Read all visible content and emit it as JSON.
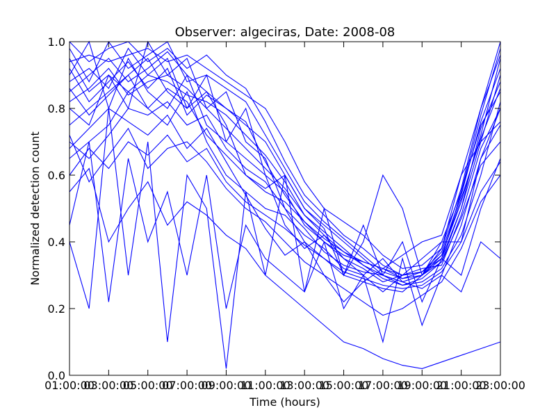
{
  "chart_data": {
    "type": "line",
    "title": "Observer: algeciras, Date: 2008-08",
    "xlabel": "Time (hours)",
    "ylabel": "Normalized detection count",
    "xlim": [
      1,
      23
    ],
    "ylim": [
      0,
      1
    ],
    "xticks": [
      {
        "value": 1,
        "label": "01:00:00"
      },
      {
        "value": 3,
        "label": "03:00:00"
      },
      {
        "value": 5,
        "label": "05:00:00"
      },
      {
        "value": 7,
        "label": "07:00:00"
      },
      {
        "value": 9,
        "label": "09:00:00"
      },
      {
        "value": 11,
        "label": "11:00:00"
      },
      {
        "value": 13,
        "label": "13:00:00"
      },
      {
        "value": 15,
        "label": "15:00:00"
      },
      {
        "value": 17,
        "label": "17:00:00"
      },
      {
        "value": 19,
        "label": "19:00:00"
      },
      {
        "value": 21,
        "label": "21:00:00"
      },
      {
        "value": 23,
        "label": "23:00:00"
      }
    ],
    "yticks": [
      {
        "value": 0.0,
        "label": "0.0"
      },
      {
        "value": 0.2,
        "label": "0.2"
      },
      {
        "value": 0.4,
        "label": "0.4"
      },
      {
        "value": 0.6,
        "label": "0.6"
      },
      {
        "value": 0.8,
        "label": "0.8"
      },
      {
        "value": 1.0,
        "label": "1.0"
      }
    ],
    "grid": false,
    "line_color": "#0000ff",
    "x": [
      1,
      2,
      3,
      4,
      5,
      6,
      7,
      8,
      9,
      10,
      11,
      12,
      13,
      14,
      15,
      16,
      17,
      18,
      19,
      20,
      21,
      22,
      23
    ],
    "series": [
      {
        "values": [
          0.85,
          0.9,
          0.95,
          0.88,
          0.92,
          0.97,
          0.9,
          0.85,
          0.8,
          0.75,
          0.7,
          0.6,
          0.5,
          0.45,
          0.4,
          0.35,
          0.3,
          0.28,
          0.3,
          0.35,
          0.5,
          0.7,
          0.9
        ]
      },
      {
        "values": [
          0.75,
          0.8,
          0.85,
          0.9,
          0.95,
          0.85,
          0.8,
          0.9,
          0.7,
          0.65,
          0.6,
          0.55,
          0.45,
          0.4,
          0.35,
          0.3,
          0.25,
          0.3,
          0.35,
          0.4,
          0.55,
          0.75,
          0.85
        ]
      },
      {
        "values": [
          0.95,
          0.85,
          0.9,
          0.8,
          1.0,
          0.9,
          0.95,
          0.8,
          0.85,
          0.7,
          0.65,
          0.5,
          0.4,
          0.35,
          0.3,
          0.28,
          0.26,
          0.25,
          0.3,
          0.38,
          0.6,
          0.8,
          1.0
        ]
      },
      {
        "values": [
          0.65,
          0.7,
          0.75,
          0.85,
          0.8,
          0.75,
          0.85,
          0.7,
          0.6,
          0.55,
          0.5,
          0.48,
          0.42,
          0.38,
          0.32,
          0.3,
          0.35,
          0.28,
          0.26,
          0.3,
          0.45,
          0.65,
          0.75
        ]
      },
      {
        "values": [
          0.9,
          1.0,
          0.8,
          0.95,
          0.85,
          0.8,
          0.9,
          0.75,
          0.7,
          0.8,
          0.6,
          0.45,
          0.38,
          0.42,
          0.35,
          0.32,
          0.28,
          0.3,
          0.32,
          0.33,
          0.48,
          0.68,
          0.8
        ]
      },
      {
        "values": [
          0.8,
          0.75,
          0.9,
          0.85,
          0.9,
          0.95,
          0.8,
          0.85,
          0.75,
          0.6,
          0.55,
          0.52,
          0.46,
          0.4,
          0.36,
          0.34,
          0.32,
          0.29,
          0.31,
          0.36,
          0.52,
          0.72,
          0.95
        ]
      },
      {
        "values": [
          0.7,
          0.65,
          0.72,
          0.8,
          0.78,
          0.82,
          0.75,
          0.78,
          0.68,
          0.62,
          0.58,
          0.5,
          0.44,
          0.37,
          0.33,
          0.31,
          0.3,
          0.27,
          0.29,
          0.34,
          0.47,
          0.63,
          0.7
        ]
      },
      {
        "values": [
          0.88,
          0.92,
          0.86,
          0.98,
          0.9,
          0.88,
          0.84,
          0.82,
          0.78,
          0.72,
          0.66,
          0.58,
          0.48,
          0.43,
          0.38,
          0.33,
          0.29,
          0.27,
          0.28,
          0.32,
          0.42,
          0.6,
          0.82
        ]
      },
      {
        "values": [
          0.98,
          0.88,
          1.0,
          0.92,
          0.96,
          1.0,
          0.88,
          0.9,
          0.86,
          0.82,
          0.72,
          0.62,
          0.52,
          0.46,
          0.41,
          0.36,
          0.31,
          0.29,
          0.3,
          0.34,
          0.5,
          0.74,
          0.88
        ]
      },
      {
        "values": [
          0.6,
          0.68,
          0.62,
          0.7,
          0.66,
          0.72,
          0.64,
          0.68,
          0.58,
          0.52,
          0.48,
          0.44,
          0.39,
          0.35,
          0.31,
          0.29,
          0.27,
          0.26,
          0.27,
          0.31,
          0.4,
          0.55,
          0.64
        ]
      },
      {
        "values": [
          0.82,
          0.86,
          0.92,
          0.84,
          0.88,
          0.9,
          0.86,
          0.8,
          0.74,
          0.68,
          0.62,
          0.56,
          0.48,
          0.42,
          0.37,
          0.34,
          0.32,
          0.3,
          0.31,
          0.37,
          0.54,
          0.76,
          0.92
        ]
      },
      {
        "values": [
          0.92,
          0.82,
          0.88,
          0.94,
          0.86,
          0.92,
          0.78,
          0.84,
          0.8,
          0.76,
          0.64,
          0.54,
          0.46,
          0.41,
          0.37,
          0.33,
          0.3,
          0.28,
          0.3,
          0.36,
          0.53,
          0.71,
          0.86
        ]
      },
      {
        "values": [
          0.55,
          0.62,
          0.4,
          0.5,
          0.58,
          0.45,
          0.52,
          0.48,
          0.42,
          0.38,
          0.3,
          0.25,
          0.2,
          0.15,
          0.1,
          0.08,
          0.05,
          0.03,
          0.02,
          0.04,
          0.06,
          0.08,
          0.1
        ]
      },
      {
        "values": [
          0.72,
          0.58,
          0.66,
          0.74,
          0.62,
          0.68,
          0.7,
          0.64,
          0.56,
          0.5,
          0.46,
          0.4,
          0.34,
          0.3,
          0.26,
          0.22,
          0.18,
          0.2,
          0.24,
          0.28,
          0.38,
          0.52,
          0.6
        ]
      },
      {
        "values": [
          1.0,
          0.94,
          0.98,
          1.0,
          0.94,
          0.98,
          0.92,
          0.96,
          0.9,
          0.86,
          0.76,
          0.64,
          0.54,
          0.48,
          0.42,
          0.38,
          0.33,
          0.3,
          0.31,
          0.35,
          0.55,
          0.78,
          0.98
        ]
      },
      {
        "values": [
          0.45,
          0.7,
          0.22,
          0.65,
          0.4,
          0.55,
          0.3,
          0.6,
          0.2,
          0.45,
          0.35,
          0.3,
          0.25,
          0.4,
          0.2,
          0.3,
          0.1,
          0.35,
          0.15,
          0.3,
          0.25,
          0.4,
          0.35
        ]
      },
      {
        "values": [
          0.4,
          0.2,
          0.8,
          0.3,
          0.7,
          0.1,
          0.6,
          0.5,
          0.02,
          0.55,
          0.3,
          0.6,
          0.25,
          0.5,
          0.3,
          0.45,
          0.3,
          0.4,
          0.22,
          0.35,
          0.3,
          0.5,
          0.65
        ]
      },
      {
        "values": [
          0.86,
          0.78,
          0.84,
          0.9,
          0.8,
          0.86,
          0.82,
          0.72,
          0.66,
          0.6,
          0.56,
          0.6,
          0.5,
          0.44,
          0.3,
          0.4,
          0.6,
          0.5,
          0.3,
          0.4,
          0.4,
          0.65,
          0.8
        ]
      },
      {
        "values": [
          0.68,
          0.74,
          0.8,
          0.76,
          0.72,
          0.78,
          0.68,
          0.74,
          0.64,
          0.54,
          0.44,
          0.36,
          0.4,
          0.3,
          0.22,
          0.28,
          0.32,
          0.36,
          0.4,
          0.42,
          0.6,
          0.7,
          0.76
        ]
      },
      {
        "values": [
          0.94,
          0.96,
          0.94,
          0.96,
          0.98,
          0.94,
          0.96,
          0.92,
          0.88,
          0.84,
          0.8,
          0.7,
          0.58,
          0.5,
          0.46,
          0.42,
          0.36,
          0.32,
          0.33,
          0.38,
          0.56,
          0.8,
          0.96
        ]
      }
    ]
  }
}
